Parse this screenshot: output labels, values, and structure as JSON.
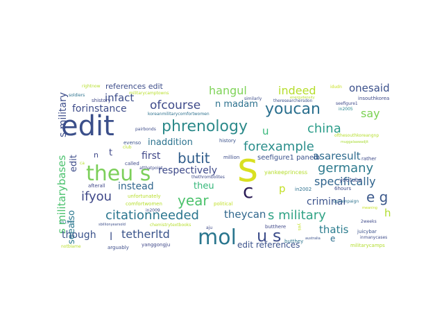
{
  "words": [
    {
      "text": "edit",
      "color": "#3b4f8a"
    },
    {
      "text": "s",
      "color": "#d9e021"
    },
    {
      "text": "theu s",
      "color": "#7ccf5a"
    },
    {
      "text": "mol",
      "color": "#2a768e"
    },
    {
      "text": "u s",
      "color": "#3d4d8a"
    },
    {
      "text": "c",
      "color": "#2b1d57"
    },
    {
      "text": "phrenology",
      "color": "#2c8a8a"
    },
    {
      "text": "youcan",
      "color": "#2a6f8e"
    },
    {
      "text": "citationneeded",
      "color": "#2a758e"
    },
    {
      "text": "s military",
      "color": "#31a386"
    },
    {
      "text": "forexample",
      "color": "#2c8f8c"
    },
    {
      "text": "germany",
      "color": "#2d7a8e"
    },
    {
      "text": "china",
      "color": "#2a9c89"
    },
    {
      "text": "e g",
      "color": "#3d5a8c"
    },
    {
      "text": "year",
      "color": "#4cc26c"
    },
    {
      "text": "ifyou",
      "color": "#3f4888"
    },
    {
      "text": "butit",
      "color": "#2f5c8a"
    },
    {
      "text": "hangul",
      "color": "#7fd358"
    },
    {
      "text": "indeed",
      "color": "#b5dd2b"
    },
    {
      "text": "onesaid",
      "color": "#3b508b"
    },
    {
      "text": "ofcourse",
      "color": "#3e4a89"
    },
    {
      "text": "infact",
      "color": "#3c4d8a"
    },
    {
      "text": "forinstance",
      "color": "#3d4b89"
    },
    {
      "text": "tetherltd",
      "color": "#3a548b"
    },
    {
      "text": "specifically",
      "color": "#30648d"
    },
    {
      "text": "asaresult",
      "color": "#2e6b8e"
    },
    {
      "text": "respectively",
      "color": "#3e4a89"
    },
    {
      "text": "criminal",
      "color": "#3b528b"
    },
    {
      "text": "thatis",
      "color": "#2b7c8e"
    },
    {
      "text": "theycan",
      "color": "#31678d"
    },
    {
      "text": "instead",
      "color": "#31668e"
    },
    {
      "text": "inaddition",
      "color": "#2b728e"
    },
    {
      "text": "first",
      "color": "#3f4788"
    },
    {
      "text": "theu",
      "color": "#35b779"
    },
    {
      "text": "though",
      "color": "#3b538b"
    },
    {
      "text": "say",
      "color": "#7ad151"
    },
    {
      "text": "s militarybases",
      "color": "#4ac16d"
    },
    {
      "text": "seealso",
      "color": "#2a788e"
    },
    {
      "text": "s military",
      "color": "#3d4d8a"
    },
    {
      "text": "edit",
      "color": "#3d4d8a"
    },
    {
      "text": "references edit",
      "color": "#3d4d8a"
    },
    {
      "text": "n madam",
      "color": "#2c718e"
    },
    {
      "text": "u",
      "color": "#35b779"
    },
    {
      "text": "p",
      "color": "#c2df23"
    },
    {
      "text": "h",
      "color": "#b0dd2f"
    },
    {
      "text": "t",
      "color": "#3f4889"
    },
    {
      "text": "n",
      "color": "#3f4889"
    },
    {
      "text": "l",
      "color": "#3d4e8a"
    },
    {
      "text": "e",
      "color": "#2d6f8e"
    },
    {
      "text": "seefigure1 panelb",
      "color": "#3a528b"
    },
    {
      "text": "edit references",
      "color": "#3b528b"
    },
    {
      "text": "yankeeprincess",
      "color": "#b5dd2b"
    },
    {
      "text": "youtube",
      "color": "#3e4c8a"
    },
    {
      "text": "rightnow",
      "color": "#b5de2b"
    },
    {
      "text": "soldiers",
      "color": "#2c728e"
    },
    {
      "text": "militarycamptowns",
      "color": "#b8de29"
    },
    {
      "text": "shistory",
      "color": "#3f4788"
    },
    {
      "text": "koreanmilitarycomfortwomen",
      "color": "#2d718e"
    },
    {
      "text": "idudn",
      "color": "#c8e020"
    },
    {
      "text": "theresearchersdon",
      "color": "#3b518b"
    },
    {
      "text": "seefigure1",
      "color": "#3e4989"
    },
    {
      "text": "insouthkorea",
      "color": "#3e4a89"
    },
    {
      "text": "in2005",
      "color": "#25848e"
    },
    {
      "text": "similarly",
      "color": "#3d4e8a"
    },
    {
      "text": "energydensity",
      "color": "#b8de29"
    },
    {
      "text": "pairbonds",
      "color": "#3e4c8a"
    },
    {
      "text": "evenso",
      "color": "#3b528b"
    },
    {
      "text": "called",
      "color": "#3e4989"
    },
    {
      "text": "history",
      "color": "#3b528b"
    },
    {
      "text": "million",
      "color": "#3d4d8a"
    },
    {
      "text": "ofthesouthkoreangnp",
      "color": "#b5de2b"
    },
    {
      "text": "muggalaawadjit",
      "color": "#a8db34"
    },
    {
      "text": "rather",
      "color": "#3e4a89"
    },
    {
      "text": "afterall",
      "color": "#3f4788"
    },
    {
      "text": "thethrombolites",
      "color": "#3e4a89"
    },
    {
      "text": "unfortunately",
      "color": "#b8de29"
    },
    {
      "text": "comfortwomen",
      "color": "#b5de2b"
    },
    {
      "text": "in2002",
      "color": "#2d718e"
    },
    {
      "text": "6hours",
      "color": "#3e4a89"
    },
    {
      "text": "upcampaign",
      "color": "#2c728e"
    },
    {
      "text": "in1992",
      "color": "#2c738e"
    },
    {
      "text": "political",
      "color": "#c0df25"
    },
    {
      "text": "butthere",
      "color": "#3f4889"
    },
    {
      "text": "butthey",
      "color": "#2b748e"
    },
    {
      "text": "meaning",
      "color": "#c5e021"
    },
    {
      "text": "2weeks",
      "color": "#3e4989"
    },
    {
      "text": "juicybar",
      "color": "#3b518b"
    },
    {
      "text": "inmanycases",
      "color": "#3e4c8a"
    },
    {
      "text": "militarycamps",
      "color": "#b2dd2d"
    },
    {
      "text": "notblame",
      "color": "#b8de29"
    },
    {
      "text": "arguably",
      "color": "#3d4d8a"
    },
    {
      "text": "yanggongju",
      "color": "#3f4788"
    },
    {
      "text": "aju",
      "color": "#3e4a89"
    },
    {
      "text": "australia",
      "color": "#3b528b"
    },
    {
      "text": "in2009",
      "color": "#3d4d8a"
    },
    {
      "text": "chemistrytextbooks",
      "color": "#b5de2b"
    },
    {
      "text": "sbillionyearsold",
      "color": "#3d4e8a"
    },
    {
      "text": "atthatpoint",
      "color": "#3e4a89"
    },
    {
      "text": "club",
      "color": "#b8de29"
    },
    {
      "text": "ca",
      "color": "#b5de2b"
    },
    {
      "text": "yes",
      "color": "#c2df23"
    }
  ]
}
